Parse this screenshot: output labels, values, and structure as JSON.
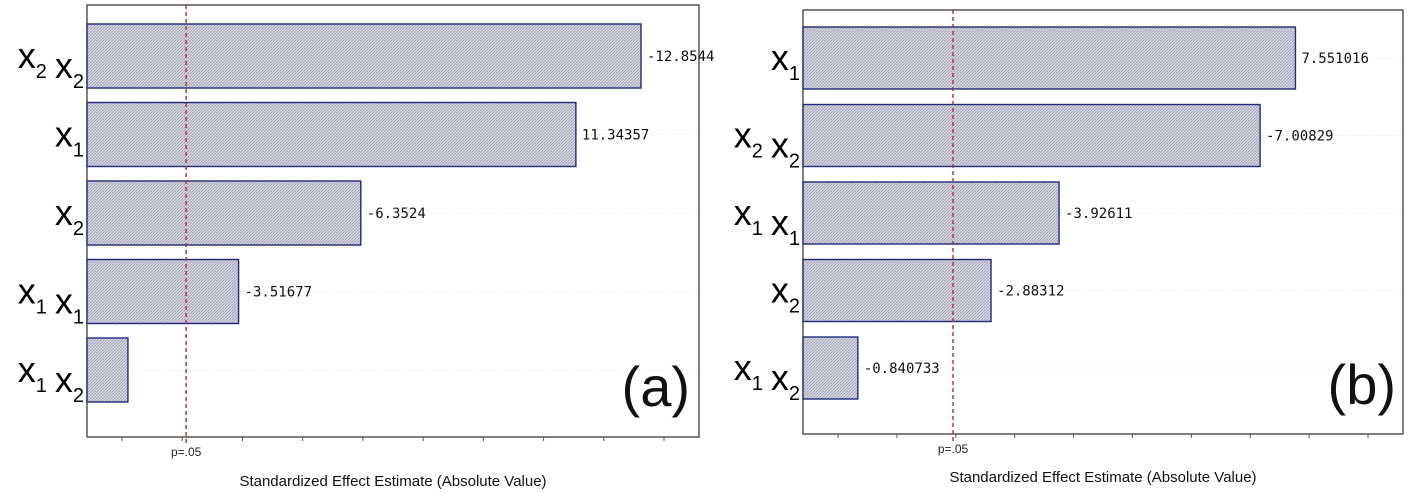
{
  "chart_data": [
    {
      "type": "bar",
      "orientation": "horizontal",
      "panel_label": "(a)",
      "xlabel": "Standardized Effect Estimate (Absolute Value)",
      "reference_line": {
        "value": 2.3,
        "label": "p=.05"
      },
      "xlim": [
        0,
        14.2
      ],
      "grid": true,
      "categories": [
        {
          "label": "x2 x2",
          "terms": [
            [
              "x",
              "2"
            ],
            [
              "x",
              "2"
            ]
          ]
        },
        {
          "label": "x1",
          "terms": [
            [
              "x",
              "1"
            ]
          ]
        },
        {
          "label": "x2",
          "terms": [
            [
              "x",
              "2"
            ]
          ]
        },
        {
          "label": "x1 x1",
          "terms": [
            [
              "x",
              "1"
            ],
            [
              "x",
              "1"
            ]
          ]
        },
        {
          "label": "x1 x2",
          "terms": [
            [
              "x",
              "1"
            ],
            [
              "x",
              "2"
            ]
          ]
        }
      ],
      "values": [
        12.8544,
        11.34357,
        6.3524,
        3.51677,
        0.95
      ],
      "value_labels": [
        "-12.8544",
        "11.34357",
        "-6.3524",
        "-3.51677",
        ""
      ]
    },
    {
      "type": "bar",
      "orientation": "horizontal",
      "panel_label": "(b)",
      "xlabel": "Standardized Effect Estimate (Absolute Value)",
      "reference_line": {
        "value": 2.3,
        "label": "p=.05"
      },
      "xlim": [
        0,
        9.2
      ],
      "grid": true,
      "categories": [
        {
          "label": "x1",
          "terms": [
            [
              "x",
              "1"
            ]
          ]
        },
        {
          "label": "x2 x2",
          "terms": [
            [
              "x",
              "2"
            ],
            [
              "x",
              "2"
            ]
          ]
        },
        {
          "label": "x1 x1",
          "terms": [
            [
              "x",
              "1"
            ],
            [
              "x",
              "1"
            ]
          ]
        },
        {
          "label": "x2",
          "terms": [
            [
              "x",
              "2"
            ]
          ]
        },
        {
          "label": "x1 x2",
          "terms": [
            [
              "x",
              "1"
            ],
            [
              "x",
              "2"
            ]
          ]
        }
      ],
      "values": [
        7.551016,
        7.00829,
        3.92611,
        2.88312,
        0.840733
      ],
      "value_labels": [
        "7.551016",
        "-7.00829",
        "-3.92611",
        "-2.88312",
        "-0.840733"
      ]
    }
  ],
  "colors": {
    "bar_fill": "#c8c9d6",
    "bar_stroke": "#1f2a7a",
    "reference_line": "#b03030",
    "frame": "#2b2b2b"
  }
}
